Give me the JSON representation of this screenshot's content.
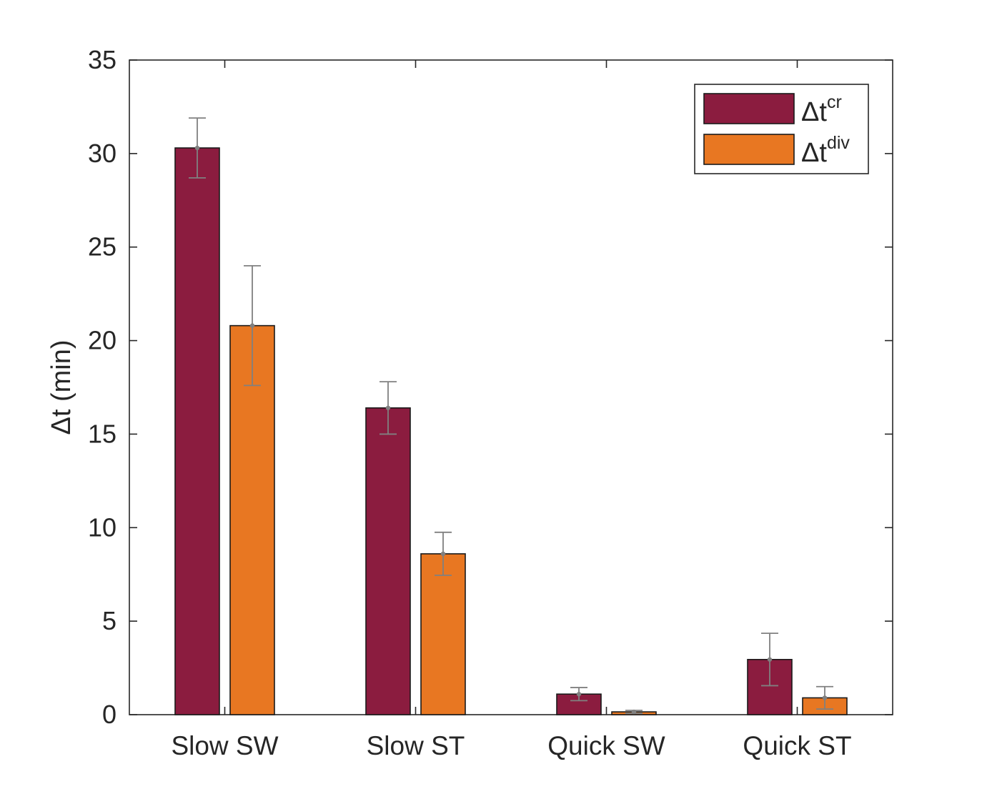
{
  "chart_data": {
    "type": "bar",
    "categories": [
      "Slow SW",
      "Slow ST",
      "Quick SW",
      "Quick ST"
    ],
    "series": [
      {
        "name": "Δt^cr",
        "label_base": "Δt",
        "label_sup": "cr",
        "color": "#8b1c3f",
        "values": [
          30.3,
          16.4,
          1.1,
          2.95
        ],
        "error": [
          1.6,
          1.4,
          0.35,
          1.4
        ]
      },
      {
        "name": "Δt^div",
        "label_base": "Δt",
        "label_sup": "div",
        "color": "#e87722",
        "values": [
          20.8,
          8.6,
          0.15,
          0.9
        ],
        "error": [
          3.2,
          1.15,
          0.08,
          0.6
        ]
      }
    ],
    "ylabel": "Δt (min)",
    "ylim": [
      0,
      35
    ],
    "yticks": [
      0,
      5,
      10,
      15,
      20,
      25,
      30,
      35
    ],
    "grid": false,
    "legend_position": "top-right",
    "error_bar_color": "#808080"
  }
}
